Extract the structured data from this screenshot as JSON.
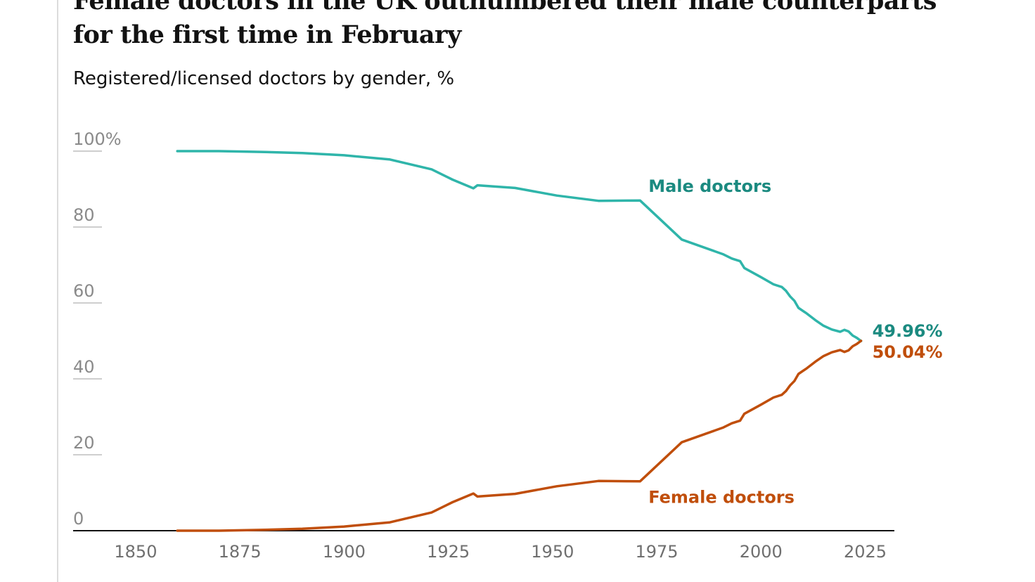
{
  "title": "Female doctors in the UK outnumbered their male counterparts for the first time in February",
  "subtitle": "Registered/licensed doctors by gender, %",
  "colors": {
    "male": "#2fb5aa",
    "male_label": "#1b8a80",
    "female": "#c04e0b",
    "female_label": "#c04e0b",
    "axis": "#121212",
    "grid": "#bdbdbd"
  },
  "chart_data": {
    "type": "line",
    "title": "Female doctors in the UK outnumbered their male counterparts for the first time in February",
    "subtitle": "Registered/licensed doctors by gender, %",
    "xlabel": "",
    "ylabel": "",
    "xlim": [
      1835,
      2032
    ],
    "ylim": [
      0,
      100
    ],
    "x_ticks": [
      1850,
      1875,
      1900,
      1925,
      1950,
      1975,
      2000,
      2025
    ],
    "x_tick_labels": [
      "1850",
      "1875",
      "1900",
      "1925",
      "1950",
      "1975",
      "2000",
      "2025"
    ],
    "y_ticks": [
      0,
      20,
      40,
      60,
      80,
      100
    ],
    "y_tick_labels": [
      "0",
      "20",
      "40",
      "60",
      "80",
      "100%"
    ],
    "grid": false,
    "series": [
      {
        "name": "Male doctors",
        "key": "male",
        "points": [
          [
            1860,
            100.0
          ],
          [
            1870,
            100.0
          ],
          [
            1880,
            99.8
          ],
          [
            1890,
            99.5
          ],
          [
            1900,
            98.9
          ],
          [
            1911,
            97.8
          ],
          [
            1921,
            95.2
          ],
          [
            1926,
            92.5
          ],
          [
            1931,
            90.2
          ],
          [
            1932,
            91.0
          ],
          [
            1941,
            90.3
          ],
          [
            1951,
            88.3
          ],
          [
            1961,
            86.9
          ],
          [
            1971,
            87.0
          ],
          [
            1981,
            76.7
          ],
          [
            1991,
            72.8
          ],
          [
            1993,
            71.7
          ],
          [
            1995,
            71.0
          ],
          [
            1996,
            69.2
          ],
          [
            2000,
            66.8
          ],
          [
            2003,
            64.9
          ],
          [
            2005,
            64.2
          ],
          [
            2006,
            63.2
          ],
          [
            2007,
            61.7
          ],
          [
            2008,
            60.6
          ],
          [
            2009,
            58.7
          ],
          [
            2011,
            57.2
          ],
          [
            2013,
            55.5
          ],
          [
            2015,
            54.0
          ],
          [
            2017,
            53.0
          ],
          [
            2019,
            52.4
          ],
          [
            2020,
            52.9
          ],
          [
            2021,
            52.5
          ],
          [
            2022,
            51.4
          ],
          [
            2023,
            50.8
          ],
          [
            2024,
            49.96
          ]
        ]
      },
      {
        "name": "Female doctors",
        "key": "female",
        "points": [
          [
            1860,
            0.0
          ],
          [
            1870,
            0.0
          ],
          [
            1880,
            0.2
          ],
          [
            1890,
            0.5
          ],
          [
            1900,
            1.1
          ],
          [
            1911,
            2.2
          ],
          [
            1921,
            4.8
          ],
          [
            1926,
            7.5
          ],
          [
            1931,
            9.8
          ],
          [
            1932,
            9.0
          ],
          [
            1941,
            9.7
          ],
          [
            1951,
            11.7
          ],
          [
            1961,
            13.1
          ],
          [
            1971,
            13.0
          ],
          [
            1981,
            23.3
          ],
          [
            1991,
            27.2
          ],
          [
            1993,
            28.3
          ],
          [
            1995,
            29.0
          ],
          [
            1996,
            30.8
          ],
          [
            2000,
            33.2
          ],
          [
            2003,
            35.1
          ],
          [
            2005,
            35.8
          ],
          [
            2006,
            36.8
          ],
          [
            2007,
            38.3
          ],
          [
            2008,
            39.4
          ],
          [
            2009,
            41.3
          ],
          [
            2011,
            42.8
          ],
          [
            2013,
            44.5
          ],
          [
            2015,
            46.0
          ],
          [
            2017,
            47.0
          ],
          [
            2019,
            47.6
          ],
          [
            2020,
            47.1
          ],
          [
            2021,
            47.5
          ],
          [
            2022,
            48.6
          ],
          [
            2023,
            49.2
          ],
          [
            2024,
            50.04
          ]
        ]
      }
    ],
    "annotations": [
      {
        "text": "Male doctors",
        "series": "male",
        "x": 1973,
        "y": 87
      },
      {
        "text": "Female doctors",
        "series": "female",
        "x": 1973,
        "y": 9
      },
      {
        "text": "49.96%",
        "series": "male",
        "x": 2024,
        "y": 49.96
      },
      {
        "text": "50.04%",
        "series": "female",
        "x": 2024,
        "y": 50.04
      }
    ]
  }
}
